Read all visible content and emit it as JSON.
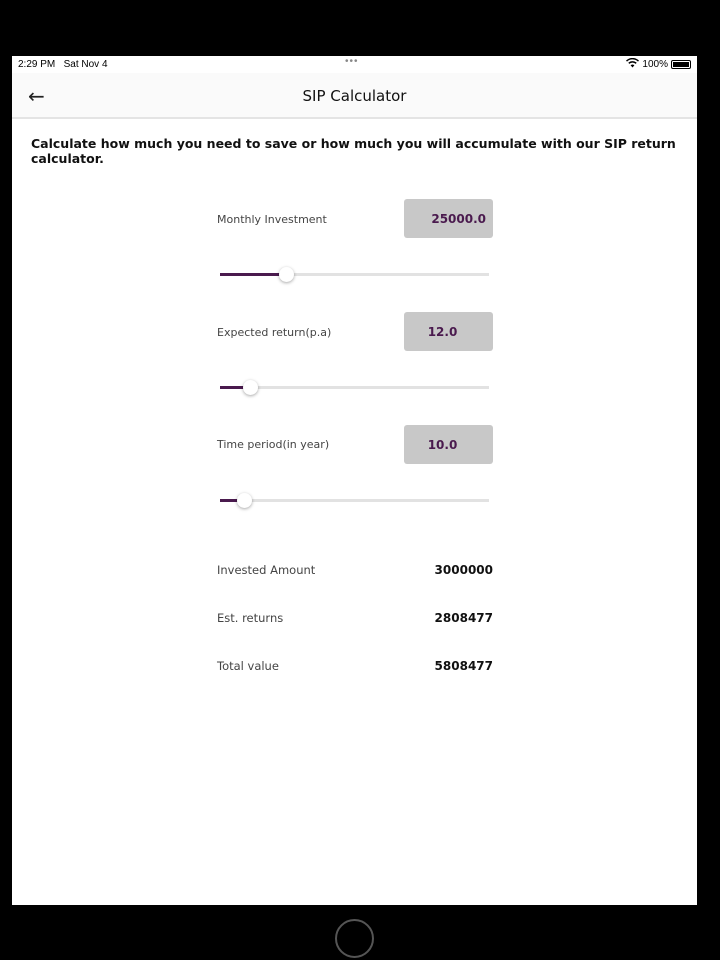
{
  "status_bar": {
    "time": "2:29 PM",
    "date": "Sat Nov 4",
    "battery": "100%"
  },
  "header": {
    "title": "SIP Calculator"
  },
  "intro": "Calculate how much you need to save or how much you will accumulate with our SIP return calculator.",
  "inputs": [
    {
      "label": "Monthly Investment",
      "value": "25000.0",
      "slider_fraction": 0.245
    },
    {
      "label": "Expected return(p.a)",
      "value": "12.0",
      "slider_fraction": 0.11
    },
    {
      "label": "Time period(in year)",
      "value": "10.0",
      "slider_fraction": 0.09
    }
  ],
  "results": [
    {
      "label": "Invested Amount",
      "value": "3000000"
    },
    {
      "label": "Est. returns",
      "value": "2808477"
    },
    {
      "label": "Total value",
      "value": "5808477"
    }
  ],
  "colors": {
    "accent": "#4a1a4e",
    "input_bg": "#c8c8c8"
  }
}
